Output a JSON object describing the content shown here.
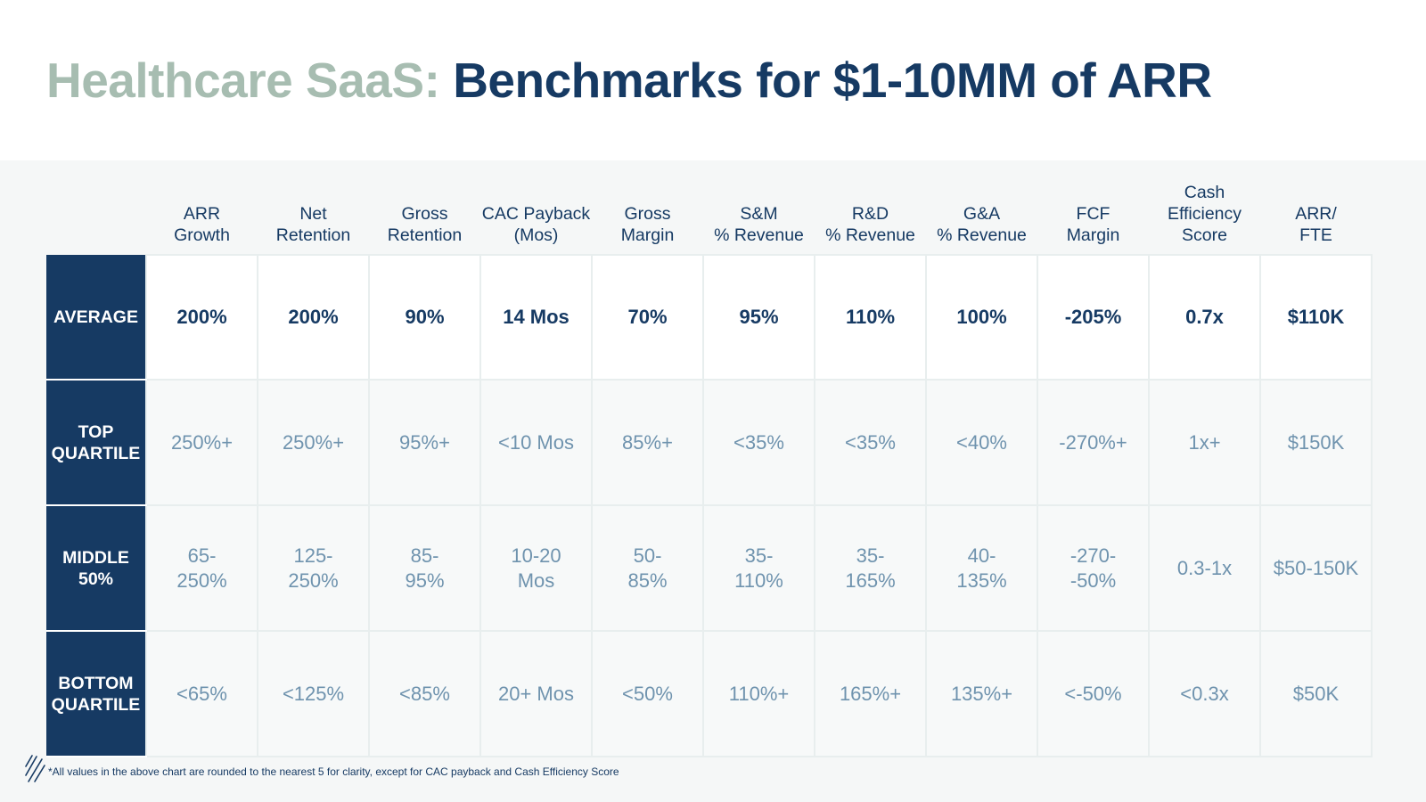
{
  "title": {
    "prefix": "Healthcare SaaS:",
    "main": "Benchmarks for $1-10MM of ARR"
  },
  "table": {
    "columns": [
      "ARR\nGrowth",
      "Net\nRetention",
      "Gross\nRetention",
      "CAC Payback\n(Mos)",
      "Gross\nMargin",
      "S&M\n% Revenue",
      "R&D\n% Revenue",
      "G&A\n% Revenue",
      "FCF\nMargin",
      "Cash\nEfficiency\nScore",
      "ARR/\nFTE"
    ],
    "rows": [
      {
        "label": "AVERAGE",
        "cells": [
          "200%",
          "200%",
          "90%",
          "14 Mos",
          "70%",
          "95%",
          "110%",
          "100%",
          "-205%",
          "0.7x",
          "$110K"
        ]
      },
      {
        "label": "TOP\nQUARTILE",
        "cells": [
          "250%+",
          "250%+",
          "95%+",
          "<10 Mos",
          "85%+",
          "<35%",
          "<35%",
          "<40%",
          "-270%+",
          "1x+",
          "$150K"
        ]
      },
      {
        "label": "MIDDLE\n50%",
        "cells": [
          "65-\n250%",
          "125-\n250%",
          "85-\n95%",
          "10-20\nMos",
          "50-\n85%",
          "35-\n110%",
          "35-\n165%",
          "40-\n135%",
          "-270-\n-50%",
          "0.3-1x",
          "$50-150K"
        ]
      },
      {
        "label": "BOTTOM\nQUARTILE",
        "cells": [
          "<65%",
          "<125%",
          "<85%",
          "20+ Mos",
          "<50%",
          "110%+",
          "165%+",
          "135%+",
          "<-50%",
          "<0.3x",
          "$50K"
        ]
      }
    ]
  },
  "footnote": "*All values in the above chart are rounded to the nearest 5 for clarity, except for CAC payback and Cash Efficiency Score",
  "logo_icon": "diagonal-stripes-logo-icon",
  "colors": {
    "navy": "#163a63",
    "sage": "#a7bdb1",
    "muted_blue": "#6f93ae",
    "band": "#f5f7f7"
  }
}
